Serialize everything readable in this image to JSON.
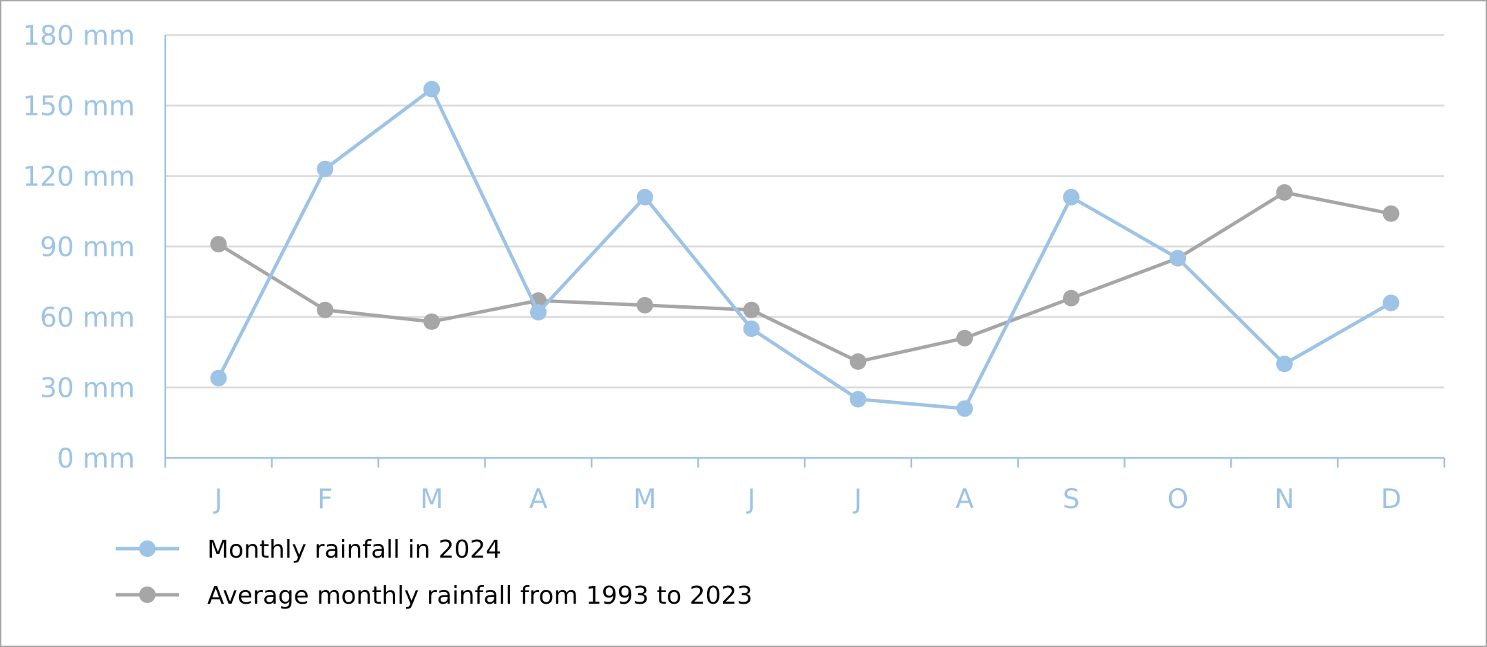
{
  "chart_data": {
    "type": "line",
    "categories": [
      "J",
      "F",
      "M",
      "A",
      "M",
      "J",
      "J",
      "A",
      "S",
      "O",
      "N",
      "D"
    ],
    "series": [
      {
        "name": "Monthly rainfall in 2024",
        "color": "#9dc3e6",
        "values": [
          34,
          123,
          157,
          62,
          111,
          55,
          25,
          21,
          111,
          85,
          40,
          66
        ]
      },
      {
        "name": "Average monthly rainfall from 1993 to 2023",
        "color": "#a6a6a6",
        "values": [
          91,
          63,
          58,
          67,
          65,
          63,
          41,
          51,
          68,
          85,
          113,
          104
        ]
      }
    ],
    "y_ticks": [
      "0 mm",
      "30 mm",
      "60 mm",
      "90 mm",
      "120 mm",
      "150 mm",
      "180 mm"
    ],
    "y_tick_values": [
      0,
      30,
      60,
      90,
      120,
      150,
      180
    ],
    "ylim": [
      0,
      180
    ],
    "grid": true,
    "legend_position": "bottom-left",
    "axis_color": "#9dc3e6",
    "grid_color": "#d9d9d9"
  }
}
